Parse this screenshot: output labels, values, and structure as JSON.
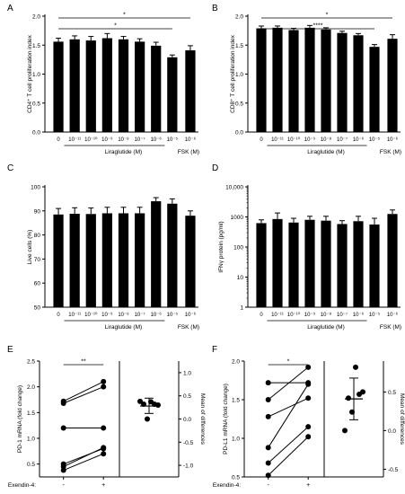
{
  "chart_data": [
    {
      "panel": "A",
      "type": "bar",
      "ylabel": "CD4⁺ T cell proliferation index",
      "ylim": [
        0,
        2.0
      ],
      "yticks": [
        0.0,
        0.5,
        1.0,
        1.5,
        2.0
      ],
      "ytick_labels": [
        "0.0",
        "0.5",
        "1.0",
        "1.5",
        "2.0"
      ],
      "categories": [
        "0",
        "10⁻¹¹",
        "10⁻¹⁰",
        "10⁻⁹",
        "10⁻⁸",
        "10⁻⁷",
        "10⁻⁶",
        "10⁻⁵",
        "10⁻⁶"
      ],
      "values": [
        1.56,
        1.6,
        1.58,
        1.62,
        1.6,
        1.56,
        1.49,
        1.29,
        1.41
      ],
      "errors": [
        0.06,
        0.06,
        0.07,
        0.08,
        0.05,
        0.05,
        0.06,
        0.04,
        0.08
      ],
      "group_labels": [
        "Liraglutide (M)",
        "FSK (M)"
      ],
      "significance": [
        {
          "label": "*",
          "from": 0,
          "to": 8
        },
        {
          "label": "*",
          "from": 0,
          "to": 7
        }
      ]
    },
    {
      "panel": "B",
      "type": "bar",
      "ylabel": "CD8⁺ T cell proliferation index",
      "ylim": [
        0,
        2.0
      ],
      "yticks": [
        0.0,
        0.5,
        1.0,
        1.5,
        2.0
      ],
      "ytick_labels": [
        "0.0",
        "0.5",
        "1.0",
        "1.5",
        "2.0"
      ],
      "categories": [
        "0",
        "10⁻¹¹",
        "10⁻¹⁰",
        "10⁻⁹",
        "10⁻⁸",
        "10⁻⁷",
        "10⁻⁶",
        "10⁻⁵",
        "10⁻⁶"
      ],
      "values": [
        1.79,
        1.8,
        1.76,
        1.8,
        1.77,
        1.71,
        1.67,
        1.47,
        1.61
      ],
      "errors": [
        0.04,
        0.03,
        0.03,
        0.04,
        0.03,
        0.03,
        0.03,
        0.04,
        0.07
      ],
      "group_labels": [
        "Liraglutide (M)",
        "FSK (M)"
      ],
      "significance": [
        {
          "label": "*",
          "from": 0,
          "to": 8
        },
        {
          "label": "****",
          "from": 0,
          "to": 7
        }
      ]
    },
    {
      "panel": "C",
      "type": "bar",
      "ylabel": "Live cells (%)",
      "ylim": [
        50,
        100
      ],
      "yticks": [
        50,
        60,
        70,
        80,
        90,
        100
      ],
      "ytick_labels": [
        "50",
        "60",
        "70",
        "80",
        "90",
        "100"
      ],
      "categories": [
        "0",
        "10⁻¹¹",
        "10⁻¹⁰",
        "10⁻⁹",
        "10⁻⁸",
        "10⁻⁷",
        "10⁻⁶",
        "10⁻⁵",
        "10⁻⁶"
      ],
      "values": [
        88.5,
        88.8,
        88.7,
        89.0,
        89.0,
        89.0,
        94.0,
        93.0,
        88.0
      ],
      "errors": [
        2.5,
        2.5,
        2.5,
        2.5,
        2.5,
        2.5,
        1.5,
        2.0,
        2.0
      ],
      "group_labels": [
        "Liraglutide (M)",
        "FSK (M)"
      ]
    },
    {
      "panel": "D",
      "type": "bar",
      "yscale": "log",
      "ylabel": "IFNγ protein (pg/ml)",
      "ylim": [
        1,
        10000
      ],
      "yticks": [
        1,
        10,
        100,
        1000,
        10000
      ],
      "ytick_labels": [
        "1",
        "10",
        "100",
        "1000",
        "10,000"
      ],
      "categories": [
        "0",
        "10⁻¹¹",
        "10⁻¹⁰",
        "10⁻⁹",
        "10⁻⁸",
        "10⁻⁷",
        "10⁻⁶",
        "10⁻⁵",
        "10⁻⁶"
      ],
      "values": [
        620,
        850,
        650,
        800,
        750,
        580,
        720,
        560,
        1250
      ],
      "errors_upper": [
        800,
        1350,
        900,
        1050,
        1050,
        750,
        1050,
        900,
        1700
      ],
      "group_labels": [
        "Liraglutide (M)",
        "FSK (M)"
      ]
    },
    {
      "panel": "E",
      "type": "scatter",
      "ylabel": "PD-1 mRNA (fold change)",
      "y2label": "Mean of differences",
      "xlabel": "Exendin-4:",
      "x_categories": [
        "-",
        "+"
      ],
      "ylim": [
        0.25,
        2.5
      ],
      "yticks": [
        0.5,
        1.0,
        1.5,
        2.0,
        2.5
      ],
      "ytick_labels": [
        "0.5",
        "1.0",
        "1.5",
        "2.0",
        "2.5"
      ],
      "y2lim": [
        -1.25,
        1.25
      ],
      "y2ticks": [
        -1.0,
        -0.5,
        0.0,
        0.5,
        1.0
      ],
      "y2tick_labels": [
        "-1.0",
        "-0.5",
        "0.0",
        "0.5",
        "1.0"
      ],
      "pairs": [
        [
          1.72,
          2.1
        ],
        [
          1.68,
          2.0
        ],
        [
          1.2,
          1.2
        ],
        [
          0.45,
          0.82
        ],
        [
          0.38,
          0.7
        ],
        [
          0.5,
          0.8
        ]
      ],
      "differences": [
        0.38,
        0.32,
        0.0,
        0.37,
        0.32,
        0.3
      ],
      "diff_mean": 0.28,
      "diff_ci": [
        0.12,
        0.45
      ],
      "significance": [
        {
          "label": "**",
          "from": 0,
          "to": 1
        }
      ]
    },
    {
      "panel": "F",
      "type": "scatter",
      "ylabel": "PD-L1 mRNA (fold change)",
      "y2label": "Mean of differences",
      "xlabel": "Exendin-4:",
      "x_categories": [
        "-",
        "+"
      ],
      "ylim": [
        0.5,
        2.0
      ],
      "yticks": [
        0.5,
        1.0,
        1.5,
        2.0
      ],
      "ytick_labels": [
        "0.5",
        "1.0",
        "1.5",
        "2.0"
      ],
      "y2lim": [
        -0.6,
        0.9
      ],
      "y2ticks": [
        -0.5,
        0.0,
        0.5
      ],
      "y2tick_labels": [
        "-0.5",
        "0.0",
        "0.5"
      ],
      "pairs": [
        [
          1.72,
          1.72
        ],
        [
          1.5,
          1.92
        ],
        [
          1.28,
          1.52
        ],
        [
          0.88,
          1.7
        ],
        [
          0.68,
          1.15
        ],
        [
          0.52,
          1.02
        ]
      ],
      "differences": [
        0.0,
        0.42,
        0.24,
        0.82,
        0.47,
        0.5
      ],
      "diff_mean": 0.41,
      "diff_ci": [
        0.14,
        0.68
      ],
      "significance": [
        {
          "label": "*",
          "from": 0,
          "to": 1
        }
      ]
    }
  ]
}
